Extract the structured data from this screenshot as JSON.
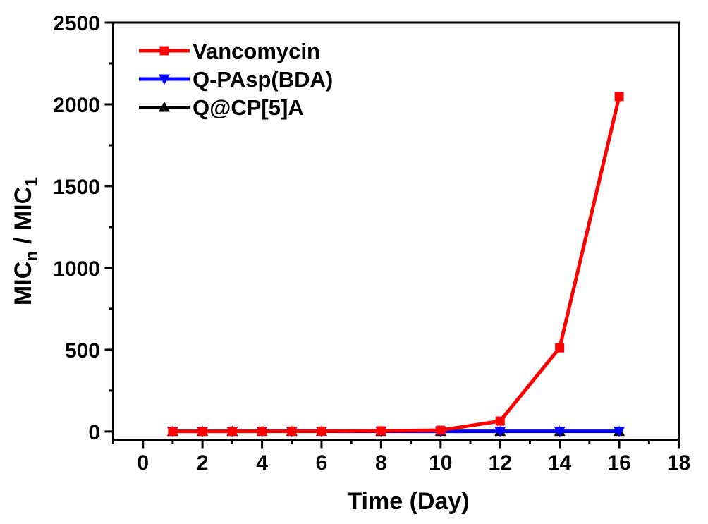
{
  "figure": {
    "background": "#ffffff",
    "axis_color": "#000000"
  },
  "chart_data": {
    "type": "line",
    "title": "",
    "xlabel": "Time (Day)",
    "ylabel": "MICn / MIC1",
    "ylabel_parts": [
      {
        "text": "MIC",
        "sub": false
      },
      {
        "text": "n",
        "sub": true
      },
      {
        "text": " / MIC",
        "sub": false
      },
      {
        "text": "1",
        "sub": true
      }
    ],
    "x": [
      1,
      2,
      3,
      4,
      5,
      6,
      8,
      10,
      12,
      14,
      16
    ],
    "series": [
      {
        "name": "Vancomycin",
        "color": "#FF0000",
        "marker": "square",
        "line_width": 5,
        "values": [
          1,
          1,
          1,
          2,
          2,
          2,
          4,
          8,
          64,
          512,
          2048
        ]
      },
      {
        "name": "Q-PAsp(BDA)",
        "color": "#0000FF",
        "marker": "triangle-down",
        "line_width": 5,
        "values": [
          1,
          1,
          1,
          1,
          1,
          1,
          1,
          1,
          1,
          1,
          1
        ]
      },
      {
        "name": "Q@CP[5]A",
        "color": "#000000",
        "marker": "triangle-up",
        "line_width": 4,
        "values": [
          1,
          1,
          1,
          1,
          1,
          1,
          1,
          1,
          1,
          1,
          1
        ]
      }
    ],
    "xlim": [
      -1,
      18
    ],
    "ylim": [
      -50,
      2500
    ],
    "x_major_ticks": [
      0,
      2,
      4,
      6,
      8,
      10,
      12,
      14,
      16,
      18
    ],
    "x_tick_labels": [
      "0",
      "2",
      "4",
      "6",
      "8",
      "10",
      "12",
      "14",
      "16",
      "18"
    ],
    "x_minor_step": 1,
    "y_major_ticks": [
      0,
      500,
      1000,
      1500,
      2000,
      2500
    ],
    "y_tick_labels": [
      "0",
      "500",
      "1000",
      "1500",
      "2000",
      "2500"
    ],
    "y_minor_step": 250,
    "grid": false,
    "legend_position": "top-left-inside"
  }
}
